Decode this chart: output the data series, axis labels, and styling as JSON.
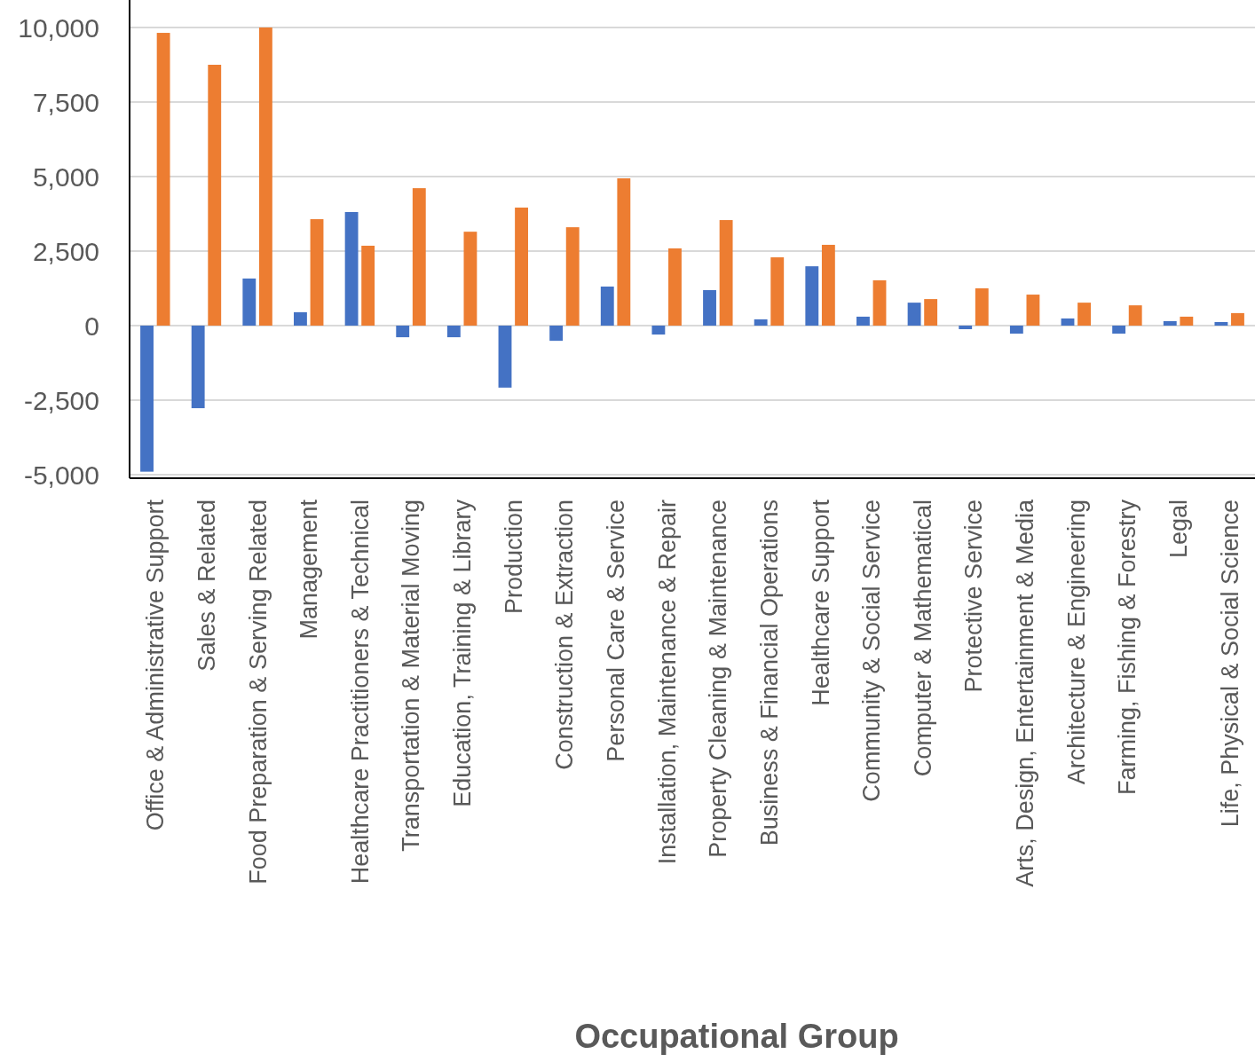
{
  "chart_data": {
    "type": "bar",
    "xlabel": "Occupational Group",
    "categories": [
      "Office & Administrative Support",
      "Sales & Related",
      "Food Preparation & Serving Related",
      "Management",
      "Healthcare Practitioners & Technical",
      "Transportation & Material Moving",
      "Education, Training & Library",
      "Production",
      "Construction & Extraction",
      "Personal Care & Service",
      "Installation, Maintenance & Repair",
      "Property Cleaning & Maintenance",
      "Business & Financial Operations",
      "Healthcare Support",
      "Community & Social Service",
      "Computer & Mathematical",
      "Protective Service",
      "Arts, Design, Entertainment & Media",
      "Architecture & Engineering",
      "Farming, Fishing & Forestry",
      "Legal",
      "Life, Physical & Social Science"
    ],
    "series": [
      {
        "color": "#4472c4",
        "values": [
          -4900,
          -2770,
          1580,
          450,
          3810,
          -390,
          -390,
          -2080,
          -510,
          1310,
          -300,
          1190,
          210,
          1990,
          300,
          770,
          -120,
          -270,
          240,
          -270,
          150,
          120
        ]
      },
      {
        "color": "#ed7d31",
        "values": [
          9820,
          8750,
          10000,
          3570,
          2680,
          4610,
          3150,
          3960,
          3300,
          4940,
          2590,
          3540,
          2290,
          2710,
          1520,
          890,
          1250,
          1040,
          770,
          680,
          300,
          420
        ]
      }
    ],
    "ylim": [
      -5000,
      10000
    ],
    "yticks": [
      {
        "value": -5000,
        "label": "-5,000"
      },
      {
        "value": -2500,
        "label": "-2,500"
      },
      0,
      {
        "value": 2500,
        "label": "2,500"
      },
      {
        "value": 5000,
        "label": "5,000"
      },
      {
        "value": 7500,
        "label": "7,500"
      },
      {
        "value": 10000,
        "label": "10,000"
      }
    ],
    "grid": "y"
  }
}
